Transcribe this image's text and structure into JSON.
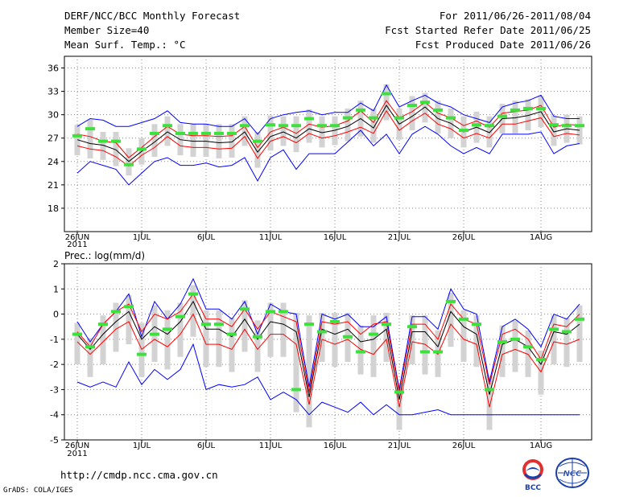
{
  "header": {
    "title": "DERF/NCC/BCC Monthly Forecast",
    "member_size": "Member Size=40",
    "variable_temp": "Mean Surf. Temp.: °C",
    "period": "For 2011/06/26-2011/08/04",
    "started_refer": "Fcst Started Refer Date 2011/06/25",
    "produced": "Fcst Produced Date 2011/06/26"
  },
  "footer": {
    "url": "http://cmdp.ncc.cma.gov.cn",
    "credit": "GrADS: COLA/IGES",
    "logo_bcc": "BCC",
    "logo_ncc": "NCC"
  },
  "colors": {
    "envelope": "#0000ff",
    "spread": "#ff0000",
    "mean": "#000000",
    "bar": "#d3d3d3",
    "median": "#3ee03e"
  },
  "chart_data": [
    {
      "type": "line",
      "title": "Mean Surf. Temp.: °C",
      "x_tick_labels": [
        "26JUN",
        "1JUL",
        "6JUL",
        "11JUL",
        "16JUL",
        "21JUL",
        "26JUL",
        "1AUG"
      ],
      "x_tick_days": [
        0,
        5,
        10,
        15,
        20,
        25,
        30,
        36
      ],
      "year_label": "2011",
      "xlim": [
        0,
        39
      ],
      "ylim": [
        15,
        37.5
      ],
      "y_ticks": [
        18,
        21,
        24,
        27,
        30,
        33,
        36
      ],
      "grid": true,
      "series": [
        {
          "name": "max",
          "values": [
            22.5,
            24.0,
            23.5,
            23.0,
            21.0,
            22.5,
            24.0,
            24.5,
            23.5,
            23.5,
            23.8,
            23.3,
            23.5,
            24.5,
            21.5,
            24.5,
            25.5,
            23.0,
            25.0,
            25.0,
            25.0,
            26.5,
            28.0,
            26.0,
            27.5,
            25.0,
            27.5,
            28.5,
            27.5,
            26.0,
            25.0,
            25.8,
            25.0,
            27.5,
            27.5,
            27.5,
            27.8,
            25.0,
            26.0,
            26.3
          ]
        },
        {
          "name": "min",
          "values": [
            28.5,
            29.5,
            29.3,
            28.5,
            28.5,
            29.0,
            29.5,
            30.5,
            29.0,
            28.8,
            28.8,
            28.5,
            28.5,
            29.5,
            27.5,
            29.5,
            30.0,
            30.3,
            30.5,
            30.0,
            30.3,
            30.3,
            31.5,
            30.5,
            33.8,
            31.0,
            31.8,
            32.5,
            31.5,
            31.0,
            30.0,
            29.5,
            29.0,
            31.0,
            31.5,
            31.8,
            32.5,
            29.8,
            29.5,
            29.5
          ]
        },
        {
          "name": "upper",
          "values": [
            27.5,
            27.2,
            26.6,
            26.4,
            24.5,
            25.8,
            27.2,
            28.5,
            27.5,
            27.3,
            27.3,
            27.2,
            27.3,
            28.5,
            25.8,
            27.8,
            28.4,
            27.6,
            28.8,
            28.4,
            28.6,
            29.2,
            30.5,
            29.0,
            31.8,
            29.6,
            30.4,
            31.6,
            30.2,
            29.6,
            28.6,
            29.2,
            28.4,
            30.2,
            30.4,
            30.6,
            31.2,
            28.4,
            28.8,
            28.6
          ]
        },
        {
          "name": "lower",
          "values": [
            26.0,
            25.6,
            25.4,
            24.6,
            23.4,
            24.8,
            25.8,
            27.2,
            26.0,
            25.8,
            25.8,
            25.6,
            25.7,
            27.2,
            24.4,
            26.6,
            27.2,
            26.4,
            27.6,
            27.0,
            27.3,
            27.8,
            28.4,
            27.6,
            30.5,
            28.0,
            29.2,
            30.2,
            28.8,
            28.2,
            27.0,
            27.6,
            27.0,
            28.8,
            28.8,
            29.2,
            29.6,
            27.2,
            27.6,
            27.4
          ]
        },
        {
          "name": "ensemble_mean",
          "values": [
            26.8,
            26.3,
            26.1,
            25.5,
            24.0,
            25.3,
            26.5,
            27.8,
            26.8,
            26.6,
            26.6,
            26.4,
            26.5,
            27.8,
            25.2,
            27.2,
            27.8,
            27.0,
            28.2,
            27.7,
            28.0,
            28.5,
            29.5,
            28.3,
            31.2,
            28.8,
            29.8,
            31.0,
            29.5,
            28.9,
            27.8,
            28.4,
            27.7,
            29.5,
            29.6,
            29.9,
            30.4,
            27.8,
            28.2,
            28.0
          ]
        },
        {
          "name": "median",
          "values": [
            27.3,
            28.2,
            26.6,
            26.6,
            23.6,
            25.6,
            27.6,
            28.6,
            27.6,
            27.6,
            27.6,
            27.6,
            27.6,
            28.6,
            26.6,
            28.7,
            28.6,
            28.6,
            29.5,
            28.6,
            28.6,
            29.6,
            30.6,
            29.6,
            32.7,
            29.6,
            31.2,
            31.6,
            30.6,
            29.6,
            28.0,
            28.7,
            28.6,
            29.8,
            30.6,
            30.8,
            30.8,
            28.7,
            28.6,
            28.6
          ]
        }
      ]
    },
    {
      "type": "line",
      "title": "Prec.: log(mm/d)",
      "x_tick_labels": [
        "26JUN",
        "1JUL",
        "6JUL",
        "11JUL",
        "16JUL",
        "21JUL",
        "26JUL",
        "1AUG"
      ],
      "x_tick_days": [
        0,
        5,
        10,
        15,
        20,
        25,
        30,
        36
      ],
      "year_label": "2011",
      "xlim": [
        0,
        39
      ],
      "ylim": [
        -5,
        2
      ],
      "y_ticks": [
        -5,
        -4,
        -3,
        -2,
        -1,
        0,
        1,
        2
      ],
      "grid": true,
      "series": [
        {
          "name": "max",
          "values": [
            -2.7,
            -2.9,
            -2.7,
            -2.9,
            -1.9,
            -2.8,
            -2.2,
            -2.6,
            -2.2,
            -1.2,
            -3.0,
            -2.8,
            -2.9,
            -2.8,
            -2.5,
            -3.4,
            -3.1,
            -3.4,
            -4.0,
            -3.5,
            -3.7,
            -3.9,
            -3.5,
            -4.0,
            -3.6,
            -4.0,
            -4.0,
            -3.9,
            -3.8,
            -4.0,
            -4.0,
            -4.0,
            -4.0,
            -4.0,
            -4.0,
            -4.0,
            -4.0,
            -4.0,
            -4.0,
            -4.0
          ]
        },
        {
          "name": "min",
          "values": [
            -0.3,
            -1.1,
            -0.4,
            0.1,
            0.8,
            -0.9,
            0.5,
            -0.2,
            0.4,
            1.4,
            0.2,
            0.2,
            -0.2,
            0.5,
            -0.8,
            0.4,
            0.1,
            0.0,
            -2.9,
            0.0,
            -0.2,
            0.0,
            -0.5,
            -0.5,
            -0.1,
            -3.0,
            -0.1,
            -0.1,
            -0.6,
            1.0,
            0.2,
            0.0,
            -2.7,
            -0.5,
            -0.2,
            -0.6,
            -1.3,
            0.0,
            -0.2,
            0.4
          ]
        },
        {
          "name": "upper",
          "values": [
            -0.7,
            -1.3,
            -0.4,
            0.1,
            0.4,
            -0.7,
            0.0,
            -0.2,
            0.1,
            0.8,
            -0.2,
            -0.2,
            -0.5,
            0.2,
            -0.6,
            0.1,
            -0.1,
            -0.3,
            -3.1,
            -0.3,
            -0.4,
            -0.3,
            -0.8,
            -0.4,
            -0.3,
            -3.1,
            -0.4,
            -0.4,
            -1.0,
            0.4,
            -0.2,
            -0.4,
            -2.8,
            -0.8,
            -0.6,
            -1.0,
            -1.8,
            -0.4,
            -0.5,
            0.0
          ]
        },
        {
          "name": "lower",
          "values": [
            -1.1,
            -1.6,
            -1.1,
            -0.6,
            -0.3,
            -1.4,
            -1.0,
            -1.3,
            -0.8,
            0.0,
            -1.2,
            -1.2,
            -1.4,
            -0.6,
            -1.4,
            -0.8,
            -0.8,
            -1.2,
            -3.6,
            -1.0,
            -1.2,
            -1.0,
            -1.4,
            -1.6,
            -1.0,
            -3.7,
            -1.1,
            -1.2,
            -1.6,
            -0.4,
            -1.0,
            -1.2,
            -3.7,
            -1.6,
            -1.4,
            -1.6,
            -2.3,
            -1.1,
            -1.2,
            -1.0
          ]
        },
        {
          "name": "ensemble_mean",
          "values": [
            -0.8,
            -1.4,
            -0.8,
            -0.3,
            0.1,
            -1.0,
            -0.5,
            -0.8,
            -0.3,
            0.5,
            -0.6,
            -0.6,
            -0.9,
            -0.2,
            -1.0,
            -0.3,
            -0.4,
            -0.7,
            -3.3,
            -0.6,
            -0.8,
            -0.6,
            -1.1,
            -1.0,
            -0.6,
            -3.4,
            -0.7,
            -0.7,
            -1.3,
            0.1,
            -0.5,
            -0.8,
            -3.2,
            -1.2,
            -1.0,
            -1.3,
            -2.0,
            -0.7,
            -0.8,
            -0.4
          ]
        },
        {
          "name": "median",
          "values": [
            -0.8,
            -1.3,
            -0.4,
            0.1,
            0.3,
            -1.6,
            -0.8,
            -0.6,
            -0.1,
            0.8,
            -0.4,
            -0.4,
            -0.8,
            0.2,
            -0.9,
            0.1,
            0.1,
            -3.0,
            -0.4,
            -0.7,
            -0.3,
            -0.9,
            -1.5,
            -0.8,
            -0.4,
            -3.1,
            -0.5,
            -1.5,
            -1.5,
            0.5,
            -0.2,
            -0.4,
            -3.0,
            -1.1,
            -1.0,
            -1.3,
            -1.8,
            -0.6,
            -0.7,
            -0.2
          ]
        }
      ]
    }
  ]
}
